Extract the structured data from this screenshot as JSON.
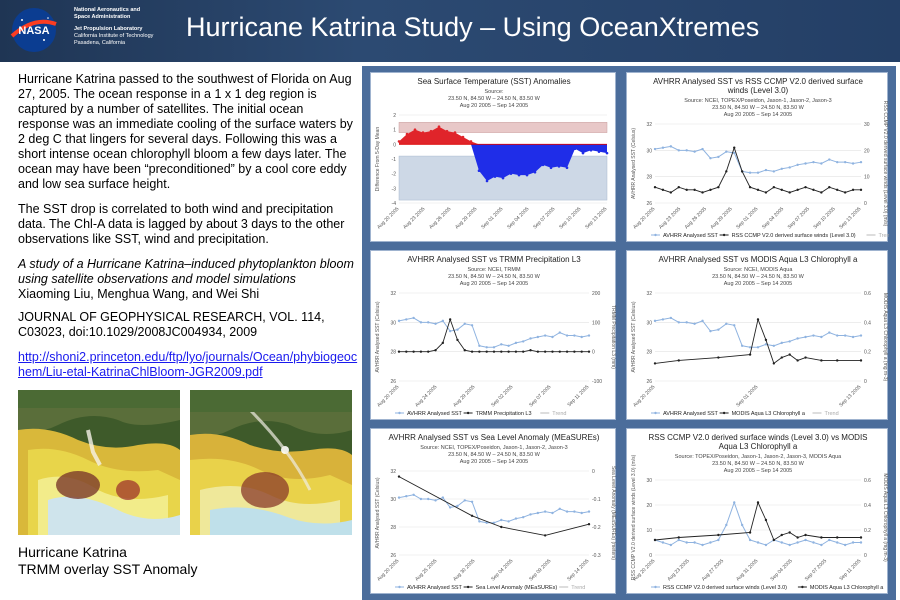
{
  "header": {
    "agency_line1": "National Aeronautics and",
    "agency_line2": "Space Administration",
    "jpl_line1": "Jet Propulsion Laboratory",
    "jpl_line2": "California Institute of Technology",
    "jpl_line3": "Pasadena, California",
    "logo_text": "NASA",
    "title": "Hurricane Katrina Study – Using OceanXtremes"
  },
  "body_text": {
    "p1": "Hurricane Katrina passed to the southwest of Florida on Aug 27, 2005. The ocean response in a 1 x 1 deg region is captured by  a number of satellites. The initial ocean response was an immediate cooling of the surface waters by 2 deg C that lingers for several days. Following this was a short intense ocean chlorophyll bloom a few days later. The ocean may have been “preconditioned” by a cool core eddy and low sea surface height.",
    "p2": "The SST drop is correlated to both wind and precipitation data. The Chl-A data is lagged by about 3 days to the other observations like SST, wind and precipitation.",
    "ref_title": "A study of a Hurricane Katrina–induced phytoplankton bloom using satellite observations and model simulations",
    "ref_authors": "Xiaoming Liu, Menghua Wang, and Wei Shi",
    "ref_journal": "JOURNAL OF GEOPHYSICAL RESEARCH, VOL. 114, C03023, doi:10.1029/2008JC004934, 2009",
    "link": "http://shoni2.princeton.edu/ftp/lyo/journals/Ocean/phybiogeochem/Liu-etal-KatrinaChlBloom-JGR2009.pdf"
  },
  "caption": {
    "line1": "Hurricane Katrina",
    "line2": "TRMM overlay SST Anomaly"
  },
  "colors": {
    "header_bg": "#26426a",
    "panel_bg": "#4b6d9b",
    "sst_line": "#8fb3e0",
    "second_line": "#222222",
    "anomaly_pos": "#e0242a",
    "anomaly_neg": "#1f2de8",
    "link": "#1a1aee"
  },
  "chart_data": [
    {
      "type": "area",
      "title": "Sea Surface Temperature (SST) Anomalies",
      "source": "Source:",
      "region": "23.50 N, 84.50 W – 24.50 N, 83.50 W",
      "dates": "Aug 20 2005 – Sep 14 2005",
      "ylabel": "Difference From 5-Day Mean",
      "yticks": [
        "2",
        "1",
        "0",
        "-1",
        "-2",
        "-3",
        "-4"
      ],
      "ylim": [
        -4,
        2
      ],
      "xticks": [
        "Aug 20 2005",
        "Aug 23 2005",
        "Aug 26 2005",
        "Aug 29 2005",
        "Sep 01 2005",
        "Sep 04 2005",
        "Sep 07 2005",
        "Sep 10 2005",
        "Sep 13 2005"
      ],
      "bands": {
        "upper": [
          0.8,
          1.5
        ],
        "lower": [
          -3.8,
          -0.8
        ]
      },
      "values": [
        0.2,
        0.7,
        1.0,
        0.8,
        0.9,
        1.2,
        0.9,
        0.8,
        0.5,
        0.2,
        -1.8,
        -2.5,
        -2.2,
        -2.3,
        -2.0,
        -2.1,
        -2.1,
        -1.9,
        -1.4,
        -1.6,
        -1.5,
        -1.6,
        -0.3,
        -0.6,
        -0.4,
        -0.5,
        -0.6
      ]
    },
    {
      "type": "line",
      "title": "AVHRR Analysed SST vs RSS CCMP V2.0 derived surface winds (Level 3.0)",
      "source": "Source: NCEI, TOPEX/Poseidon, Jason-1, Jason-2, Jason-3",
      "region": "23.50 N, 84.50 W – 24.50 N, 83.50 W",
      "dates": "Aug 20 2005 – Sep 14 2005",
      "ylabel": "AVHRR Analysed SST (Celsius)",
      "ylabel2": "RSS CCMP V2.0 derived surface winds (Level 3.0) (m/s)",
      "yticks": [
        "32",
        "30",
        "28",
        "26"
      ],
      "yticks2": [
        "30",
        "20",
        "10",
        "0"
      ],
      "xticks": [
        "Aug 20 2005",
        "Aug 23 2005",
        "Aug 26 2005",
        "Aug 29 2005",
        "Sep 01 2005",
        "Sep 04 2005",
        "Sep 07 2005",
        "Sep 10 2005",
        "Sep 13 2005"
      ],
      "ylim": [
        26,
        32
      ],
      "y2lim": [
        0,
        30
      ],
      "series": [
        {
          "name": "AVHRR Analysed SST",
          "values": [
            30.1,
            30.2,
            30.3,
            30.0,
            30.0,
            29.9,
            30.1,
            29.4,
            29.5,
            29.9,
            29.8,
            28.4,
            28.3,
            28.3,
            28.5,
            28.4,
            28.6,
            28.7,
            28.9,
            29.0,
            29.1,
            29.0,
            29.3,
            29.1,
            29.1,
            29.0,
            29.1
          ]
        },
        {
          "name": "RSS CCMP V2.0 derived surface winds (Level 3.0)",
          "values": [
            6,
            5,
            4,
            6,
            5,
            5,
            4,
            5,
            6,
            12,
            21,
            12,
            6,
            5,
            4,
            6,
            5,
            4,
            5,
            6,
            5,
            4,
            6,
            5,
            4,
            5,
            5
          ]
        }
      ],
      "trend": "Trend"
    },
    {
      "type": "line",
      "title": "AVHRR Analysed SST vs TRMM Precipitation L3",
      "source": "Source: NCEI, TRMM",
      "region": "23.50 N, 84.50 W – 24.50 N, 83.50 W",
      "dates": "Aug 20 2005 – Sep 14 2005",
      "ylabel": "AVHRR Analysed SST (Celsius)",
      "ylabel2": "TRMM Precipitation L3 (mm)",
      "yticks": [
        "32",
        "30",
        "28",
        "26"
      ],
      "yticks2": [
        "200",
        "100",
        "0",
        "-100"
      ],
      "xticks": [
        "Aug 20 2005",
        "Aug 24 2005",
        "Aug 29 2005",
        "Sep 02 2005",
        "Sep 07 2005",
        "Sep 11 2005"
      ],
      "ylim": [
        26,
        32
      ],
      "y2lim": [
        -100,
        200
      ],
      "series": [
        {
          "name": "AVHRR Analysed SST",
          "values": [
            30.1,
            30.2,
            30.3,
            30.0,
            30.0,
            29.9,
            30.1,
            29.4,
            29.5,
            29.9,
            29.8,
            28.4,
            28.3,
            28.3,
            28.5,
            28.4,
            28.6,
            28.7,
            28.9,
            29.0,
            29.1,
            29.0,
            29.3,
            29.1,
            29.1,
            29.0,
            29.1
          ]
        },
        {
          "name": "TRMM Precipitation L3",
          "values": [
            0,
            0,
            0,
            0,
            0,
            5,
            30,
            110,
            40,
            5,
            0,
            0,
            0,
            0,
            0,
            0,
            0,
            0,
            5,
            0,
            0,
            0,
            0,
            0,
            0,
            0,
            0
          ]
        }
      ],
      "trend": "Trend"
    },
    {
      "type": "line",
      "title": "AVHRR Analysed SST vs MODIS Aqua L3 Chlorophyll a",
      "source": "Source: NCEI, MODIS Aqua",
      "region": "23.50 N, 84.50 W – 24.50 N, 83.50 W",
      "dates": "Aug 20 2005 – Sep 14 2005",
      "ylabel": "AVHRR Analysed SST (Celsius)",
      "ylabel2": "MODIS Aqua L3 Chlorophyll a (mg m-3)",
      "yticks": [
        "32",
        "30",
        "28",
        "26"
      ],
      "yticks2": [
        "0.6",
        "0.4",
        "0.2",
        "0"
      ],
      "xticks": [
        "Aug 20 2005",
        "Sep 01 2005",
        "Sep 13 2005"
      ],
      "ylim": [
        26,
        32
      ],
      "y2lim": [
        0,
        0.6
      ],
      "series": [
        {
          "name": "AVHRR Analysed SST",
          "values": [
            30.1,
            30.2,
            30.3,
            30.0,
            30.0,
            29.9,
            30.1,
            29.4,
            29.5,
            29.9,
            29.8,
            28.4,
            28.3,
            28.3,
            28.5,
            28.4,
            28.6,
            28.7,
            28.9,
            29.0,
            29.1,
            29.0,
            29.3,
            29.1,
            29.1,
            29.0,
            29.1
          ]
        },
        {
          "name": "MODIS Aqua L3 Chlorophyll a",
          "values": [
            0.12,
            null,
            null,
            0.14,
            null,
            null,
            null,
            null,
            0.16,
            null,
            null,
            null,
            0.18,
            0.42,
            0.28,
            0.12,
            0.16,
            0.18,
            0.14,
            0.16,
            null,
            0.14,
            null,
            0.14,
            null,
            null,
            0.14
          ]
        }
      ],
      "trend": "Trend"
    },
    {
      "type": "line",
      "title": "AVHRR Analysed SST vs Sea Level Anomaly (MEaSUREs)",
      "source": "Source: NCEI, TOPEX/Poseidon, Jason-1, Jason-2, Jason-3",
      "region": "23.50 N, 84.50 W – 24.50 N, 83.50 W",
      "dates": "Aug 20 2005 – Sep 14 2005",
      "ylabel": "AVHRR Analysed SST (Celsius)",
      "ylabel2": "Sea Level Anomaly (MEaSUREs) (meters)",
      "yticks": [
        "32",
        "30",
        "28",
        "26"
      ],
      "yticks2": [
        "0",
        "-0.1",
        "-0.2",
        "-0.3"
      ],
      "xticks": [
        "Aug 20 2005",
        "Aug 25 2005",
        "Aug 30 2005",
        "Sep 04 2005",
        "Sep 09 2005",
        "Sep 14 2005"
      ],
      "ylim": [
        26,
        32
      ],
      "y2lim": [
        -0.3,
        0
      ],
      "series": [
        {
          "name": "AVHRR Analysed SST",
          "values": [
            30.1,
            30.2,
            30.3,
            30.0,
            30.0,
            29.9,
            30.1,
            29.4,
            29.5,
            29.9,
            29.8,
            28.4,
            28.3,
            28.3,
            28.5,
            28.4,
            28.6,
            28.7,
            28.9,
            29.0,
            29.1,
            29.0,
            29.3,
            29.1,
            29.1,
            29.0,
            29.1
          ]
        },
        {
          "name": "Sea Level Anomaly (MEaSUREs)",
          "values": [
            -0.02,
            null,
            null,
            null,
            null,
            null,
            null,
            null,
            null,
            null,
            -0.16,
            null,
            null,
            null,
            -0.2,
            null,
            null,
            null,
            null,
            null,
            -0.23,
            null,
            null,
            null,
            null,
            null,
            -0.19
          ]
        }
      ],
      "trend": "Trend"
    },
    {
      "type": "line",
      "title": "RSS CCMP V2.0 derived surface winds (Level 3.0) vs MODIS Aqua L3 Chlorophyll a",
      "source": "Source: TOPEX/Poseidon, Jason-1, Jason-2, Jason-3, MODIS Aqua",
      "region": "23.50 N, 84.50 W – 24.50 N, 83.50 W",
      "dates": "Aug 20 2005 – Sep 14 2005",
      "ylabel": "RSS CCMP V2.0 derived surface winds (Level 3.0) (m/s)",
      "ylabel2": "MODIS Aqua L3 Chlorophyll a (mg m-3)",
      "yticks": [
        "30",
        "20",
        "10",
        "0"
      ],
      "yticks2": [
        "0.6",
        "0.4",
        "0.2",
        "0"
      ],
      "xticks": [
        "Aug 20 2005",
        "Aug 23 2005",
        "Aug 27 2005",
        "Aug 31 2005",
        "Sep 04 2005",
        "Sep 07 2005",
        "Sep 11 2005"
      ],
      "ylim": [
        0,
        30
      ],
      "y2lim": [
        0,
        0.6
      ],
      "series": [
        {
          "name": "RSS CCMP V2.0 derived surface winds (Level 3.0)",
          "values": [
            6,
            5,
            4,
            6,
            5,
            5,
            4,
            5,
            6,
            12,
            21,
            12,
            6,
            5,
            4,
            6,
            5,
            4,
            5,
            6,
            5,
            4,
            6,
            5,
            4,
            5,
            5
          ]
        },
        {
          "name": "MODIS Aqua L3 Chlorophyll a",
          "values": [
            0.12,
            null,
            null,
            0.14,
            null,
            null,
            null,
            null,
            0.16,
            null,
            null,
            null,
            0.18,
            0.42,
            0.28,
            0.12,
            0.16,
            0.18,
            0.14,
            0.16,
            null,
            0.14,
            null,
            0.14,
            null,
            null,
            0.14
          ]
        }
      ]
    }
  ]
}
